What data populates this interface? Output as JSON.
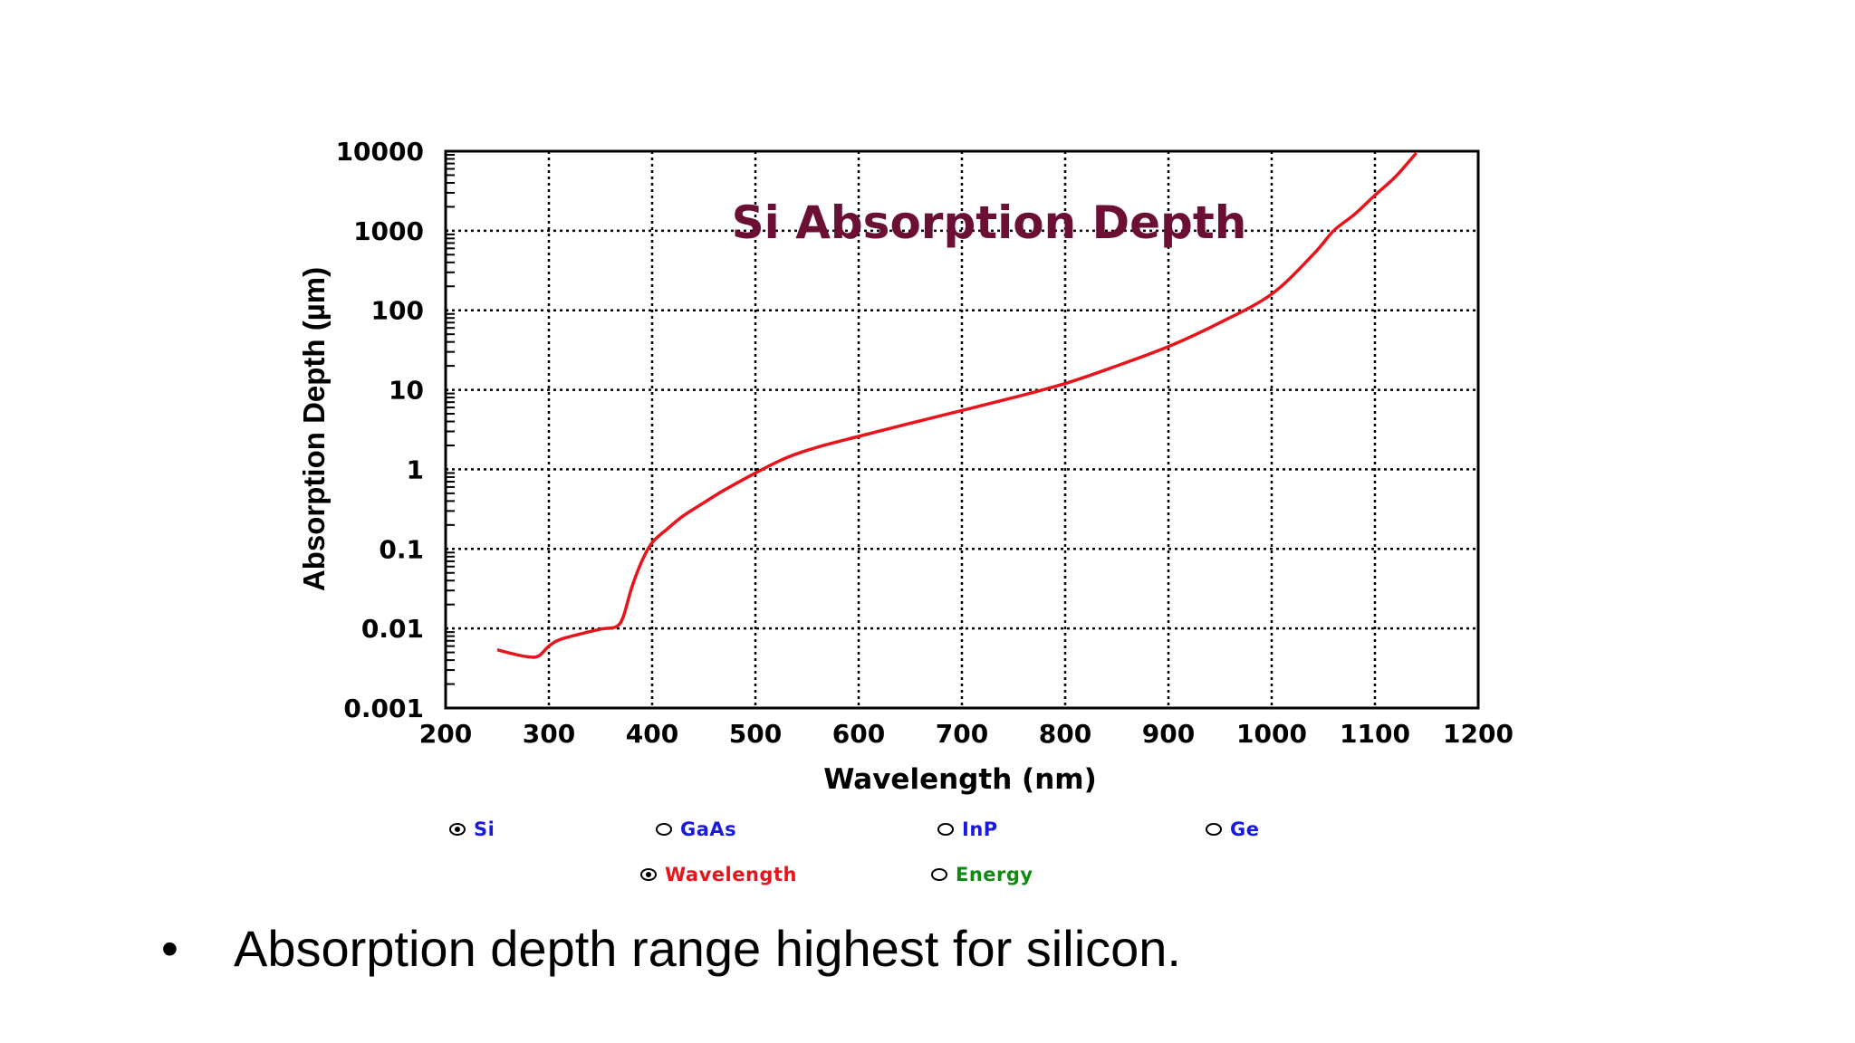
{
  "chart_data": {
    "type": "line",
    "title": "Si Absorption Depth",
    "xlabel": "Wavelength (nm)",
    "ylabel": "Absorption Depth (µm)",
    "xlim": [
      200,
      1200
    ],
    "ylim": [
      0.001,
      10000
    ],
    "yscale": "log",
    "grid": true,
    "x_ticks": [
      "200",
      "300",
      "400",
      "500",
      "600",
      "700",
      "800",
      "900",
      "1000",
      "1100",
      "1200"
    ],
    "y_ticks": [
      "0.001",
      "0.01",
      "0.1",
      "1",
      "10",
      "100",
      "1000",
      "10000"
    ],
    "line_color": "#e8141c",
    "title_color": "#6b0f35",
    "series": [
      {
        "x": [
          250,
          265,
          280,
          290,
          300,
          310,
          330,
          350,
          365,
          372,
          380,
          390,
          400,
          415,
          430,
          450,
          470,
          500,
          530,
          560,
          600,
          650,
          700,
          750,
          800,
          850,
          900,
          950,
          1000,
          1040,
          1060,
          1080,
          1100,
          1120,
          1140
        ],
        "y": [
          0.0054,
          0.0048,
          0.0044,
          0.0045,
          0.006,
          0.0072,
          0.0085,
          0.0098,
          0.0105,
          0.014,
          0.032,
          0.07,
          0.12,
          0.18,
          0.26,
          0.38,
          0.55,
          0.9,
          1.4,
          1.9,
          2.6,
          3.8,
          5.5,
          8.0,
          12,
          20,
          35,
          70,
          160,
          500,
          1000,
          1600,
          2800,
          4800,
          9500
        ]
      }
    ]
  },
  "selectors": {
    "materials": [
      {
        "label": "Si",
        "checked": true,
        "color": "#1a1adf"
      },
      {
        "label": "GaAs",
        "checked": false,
        "color": "#1a1adf"
      },
      {
        "label": "InP",
        "checked": false,
        "color": "#1a1adf"
      },
      {
        "label": "Ge",
        "checked": false,
        "color": "#1a1adf"
      }
    ],
    "modes": [
      {
        "label": "Wavelength",
        "checked": true,
        "color": "#e8141c"
      },
      {
        "label": "Energy",
        "checked": false,
        "color": "#118a11"
      }
    ]
  },
  "bullet": {
    "symbol": "•",
    "text": "Absorption depth range highest for silicon."
  }
}
